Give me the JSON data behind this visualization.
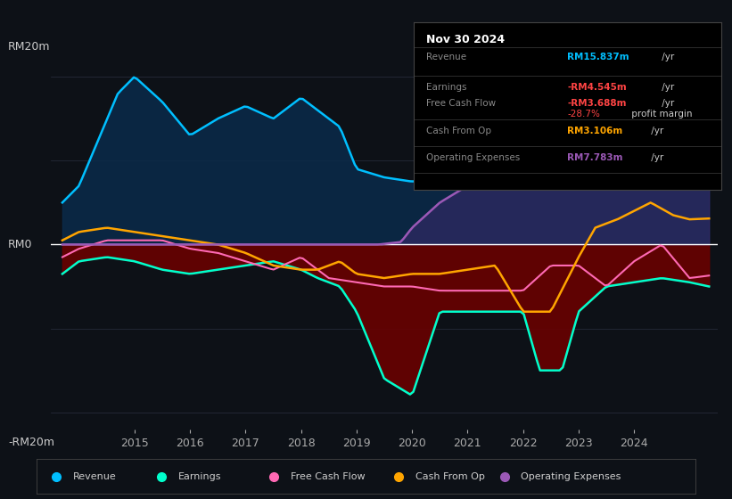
{
  "bg_color": "#0d1117",
  "plot_bg_color": "#0d1117",
  "grid_color": "#2a3040",
  "zero_line_color": "#ffffff",
  "ylabel_top": "RM20m",
  "ylabel_bottom": "-RM20m",
  "ylabel_mid": "RM0",
  "ylim": [
    -22,
    22
  ],
  "xlim": [
    2013.5,
    2025.5
  ],
  "xticks": [
    2015,
    2016,
    2017,
    2018,
    2019,
    2020,
    2021,
    2022,
    2023,
    2024
  ],
  "revenue_color": "#00bfff",
  "revenue_fill": "#0a2a4a",
  "earnings_color": "#00ffcc",
  "earnings_fill_neg": "#6b0000",
  "fcf_color": "#ff69b4",
  "cashfromop_color": "#ffa500",
  "opex_color": "#9b59b6",
  "opex_fill": "#3d2a6e",
  "info_box_bg": "#0d1117",
  "info_box_border": "#333333",
  "info_title": "Nov 30 2024",
  "info_rows": [
    {
      "label": "Revenue",
      "value": "RM15.837m",
      "suffix": " /yr",
      "value_color": "#00bfff",
      "extra": null
    },
    {
      "label": "Earnings",
      "value": "-RM4.545m",
      "suffix": " /yr",
      "value_color": "#ff4444",
      "extra": "-28.7% profit margin"
    },
    {
      "label": "Free Cash Flow",
      "value": "-RM3.688m",
      "suffix": " /yr",
      "value_color": "#ff4444",
      "extra": null
    },
    {
      "label": "Cash From Op",
      "value": "RM3.106m",
      "suffix": " /yr",
      "value_color": "#ffa500",
      "extra": null
    },
    {
      "label": "Operating Expenses",
      "value": "RM7.783m",
      "suffix": " /yr",
      "value_color": "#9b59b6",
      "extra": null
    }
  ],
  "legend": [
    {
      "label": "Revenue",
      "color": "#00bfff"
    },
    {
      "label": "Earnings",
      "color": "#00ffcc"
    },
    {
      "label": "Free Cash Flow",
      "color": "#ff69b4"
    },
    {
      "label": "Cash From Op",
      "color": "#ffa500"
    },
    {
      "label": "Operating Expenses",
      "color": "#9b59b6"
    }
  ]
}
